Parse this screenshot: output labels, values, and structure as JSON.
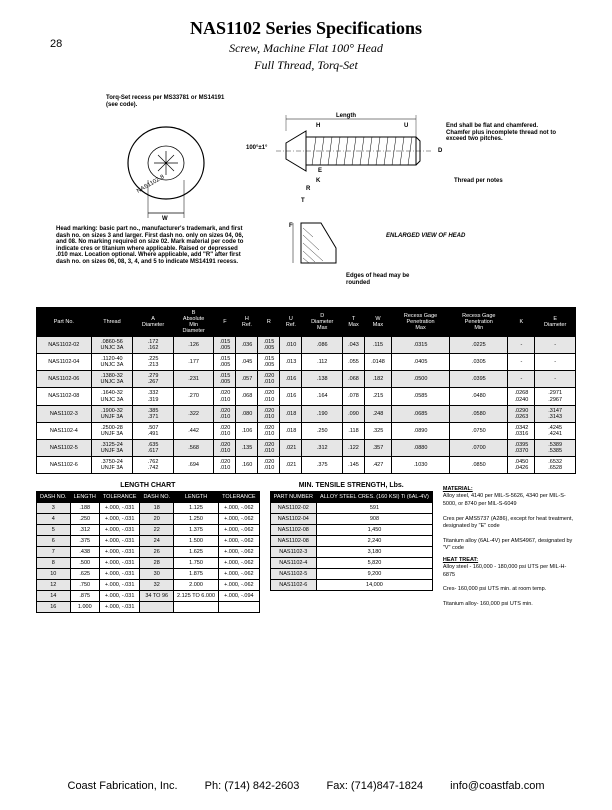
{
  "page_number": "28",
  "title": "NAS1102 Series Specifications",
  "subtitle1": "Screw, Machine Flat 100° Head",
  "subtitle2": "Full Thread, Torq-Set",
  "diagram_notes": {
    "torq_set": "Torq-Set recess per MS33781 or MS14191 (see code).",
    "head_marking": "Head marking: basic part no., manufacturer's trademark, and first dash no. on sizes 3 and larger. First dash no. only on sizes 04, 06, and 08. No marking required on size 02. Mark material per code to indicate cres or titanium where applicable. Raised or depressed .010 max. Location optional. Where applicable, add \"R\" after first dash no. on sizes 06, 08, 3, 4, and 5 to indicate MS14191 recess.",
    "end_chamfer": "End shall be flat and chamfered. Chamfer plus incomplete thread not to exceed two pitches.",
    "thread_note": "Thread per notes",
    "enlarged": "ENLARGED VIEW OF HEAD",
    "edges": "Edges of head may be rounded",
    "length": "Length",
    "angle": "100°±1°",
    "W": "W",
    "T": "T",
    "K": "K",
    "E": "E",
    "R": "R",
    "H": "H",
    "U": "U",
    "D": "D",
    "F": "F"
  },
  "main_table": {
    "headers": [
      "Part No.",
      "Thread",
      "A\nDiameter",
      "B\nAbsolute\nMin\nDiameter",
      "F",
      "H\nRef.",
      "R",
      "U\nRef.",
      "D\nDiameter\nMax",
      "T\nMax",
      "W\nMax",
      "Recess Gage\nPenetration\nMax",
      "Recess Gage\nPenetration\nMin",
      "K",
      "E\nDiameter"
    ],
    "rows": [
      [
        "NAS1102-02",
        ".0860-56\nUNJC 3A",
        ".172\n.162",
        ".126",
        ".015\n.005",
        ".036",
        ".015\n.005",
        ".010",
        ".086",
        ".043",
        ".115",
        ".0315",
        ".0225",
        "-",
        "-"
      ],
      [
        "NAS1102-04",
        ".1120-40\nUNJC 3A",
        ".225\n.213",
        ".177",
        ".015\n.005",
        ".045",
        ".015\n.005",
        ".013",
        ".112",
        ".055",
        ".0148",
        ".0405",
        ".0305",
        "-",
        "-"
      ],
      [
        "NAS1102-06",
        ".1380-32\nUNJC 3A",
        ".279\n.267",
        ".231",
        ".015\n.005",
        ".057",
        ".020\n.010",
        ".016",
        ".138",
        ".068",
        ".182",
        ".0500",
        ".0395",
        "-",
        "-"
      ],
      [
        "NAS1102-08",
        ".1640-32\nUNJC 3A",
        ".332\n.319",
        ".270",
        ".020\n.010",
        ".068",
        ".020\n.010",
        ".016",
        ".164",
        ".078",
        ".215",
        ".0585",
        ".0480",
        ".0268\n.0240",
        ".2971\n.2967"
      ],
      [
        "NAS1102-3",
        ".1900-32\nUNJF 3A",
        ".385\n.371",
        ".322",
        ".020\n.010",
        ".080",
        ".020\n.010",
        ".018",
        ".190",
        ".090",
        ".248",
        ".0685",
        ".0580",
        ".0290\n.0263",
        ".3147\n.3143"
      ],
      [
        "NAS1102-4",
        ".2500-28\nUNJF 3A",
        ".507\n.491",
        ".442",
        ".020\n.010",
        ".106",
        ".020\n.010",
        ".018",
        ".250",
        ".118",
        ".325",
        ".0890",
        ".0750",
        ".0342\n.0316",
        ".4245\n.4241"
      ],
      [
        "NAS1102-5",
        ".3125-24\nUNJF 3A",
        ".635\n.617",
        ".568",
        ".020\n.010",
        ".135",
        ".020\n.010",
        ".021",
        ".312",
        ".122",
        ".357",
        ".0880",
        ".0700",
        ".0395\n.0370",
        ".5389\n.5385"
      ],
      [
        "NAS1102-6",
        ".3750-24\nUNJF 3A",
        ".762\n.742",
        ".694",
        ".020\n.010",
        ".160",
        ".020\n.010",
        ".021",
        ".375",
        ".145",
        ".427",
        ".1030",
        ".0850",
        ".0450\n.0426",
        ".6532\n.6528"
      ]
    ]
  },
  "length_chart": {
    "title": "LENGTH CHART",
    "headers": [
      "DASH NO.",
      "LENGTH",
      "TOLERANCE",
      "DASH NO.",
      "LENGTH",
      "TOLERANCE"
    ],
    "rows": [
      [
        "3",
        ".188",
        "+.000, -.031",
        "18",
        "1.125",
        "+.000, -.062"
      ],
      [
        "4",
        ".250",
        "+.000, -.031",
        "20",
        "1.250",
        "+.000, -.062"
      ],
      [
        "5",
        ".312",
        "+.000, -.031",
        "22",
        "1.375",
        "+.000, -.062"
      ],
      [
        "6",
        ".375",
        "+.000, -.031",
        "24",
        "1.500",
        "+.000, -.062"
      ],
      [
        "7",
        ".438",
        "+.000, -.031",
        "26",
        "1.625",
        "+.000, -.062"
      ],
      [
        "8",
        ".500",
        "+.000, -.031",
        "28",
        "1.750",
        "+.000, -.062"
      ],
      [
        "10",
        ".625",
        "+.000, -.031",
        "30",
        "1.875",
        "+.000, -.062"
      ],
      [
        "12",
        ".750",
        "+.000, -.031",
        "32",
        "2.000",
        "+.000, -.062"
      ],
      [
        "14",
        ".875",
        "+.000, -.031",
        "34 TO 96",
        "2.125 TO 6.000",
        "+.000, -.094"
      ],
      [
        "16",
        "1.000",
        "+.000, -.031",
        "",
        "",
        ""
      ]
    ]
  },
  "tensile": {
    "title": "MIN. TENSILE STRENGTH, Lbs.",
    "headers": [
      "PART NUMBER",
      "ALLOY STEEL CRES. (160 KSI) Ti (6AL-4V)"
    ],
    "rows": [
      [
        "NAS1102-02",
        "591"
      ],
      [
        "NAS1102-04",
        "908"
      ],
      [
        "NAS1102-08",
        "1,450"
      ],
      [
        "NAS1102-08",
        "2,240"
      ],
      [
        "NAS1102-3",
        "3,180"
      ],
      [
        "NAS1102-4",
        "5,820"
      ],
      [
        "NAS1102-5",
        "9,200"
      ],
      [
        "NAS1102-6",
        "14,000"
      ]
    ]
  },
  "material_notes": {
    "mat_h": "MATERIAL:",
    "mat1": "Alloy steel, 4140 per MIL-S-5626, 4340 per MIL-S-5000, or 8740 per MIL-S-6049",
    "mat2": "Cres per AMS5737 (A286), except for heat treatment, designated by \"E\" code",
    "mat3": "Titanium alloy (6AL-4V) per AMS4967, designated by \"V\" code",
    "ht_h": "HEAT TREAT:",
    "ht1": "Alloy steel - 160,000 - 180,000 psi UTS per MIL-H-6875",
    "ht2": "Cres- 160,000 psi UTS min. at room temp.",
    "ht3": "Titanium alloy- 160,000 psi UTS min."
  },
  "footer": {
    "company": "Coast Fabrication, Inc.",
    "phone": "Ph: (714) 842-2603",
    "fax": "Fax: (714)847-1824",
    "email": "info@coastfab.com"
  }
}
